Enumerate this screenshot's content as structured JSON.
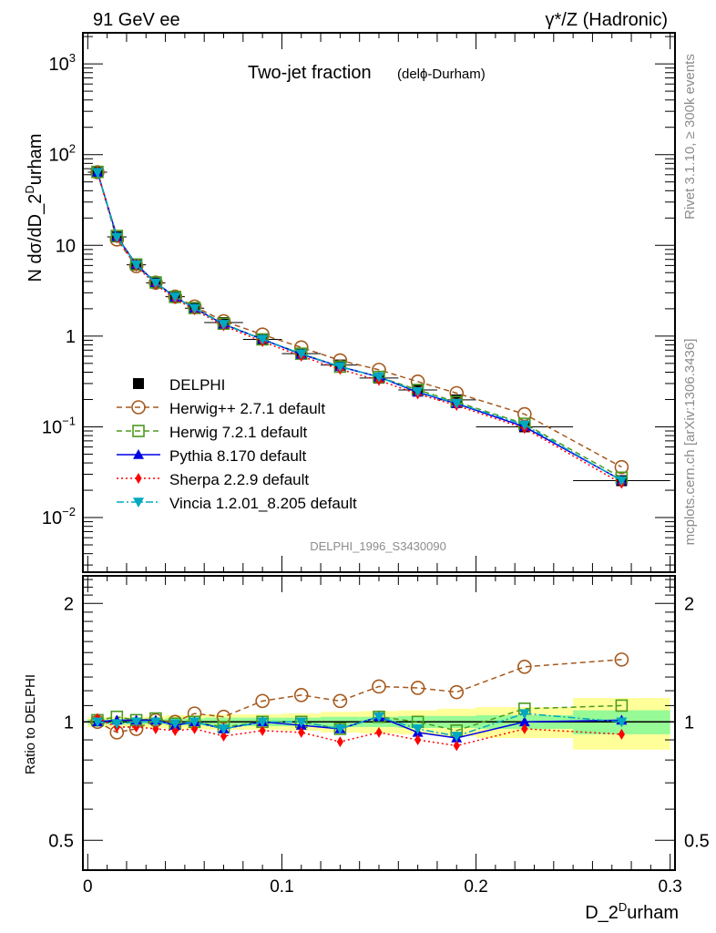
{
  "header": {
    "left": "91 GeV ee",
    "right": "γ*/Z (Hadronic)"
  },
  "side_labels": {
    "rivet": "Rivet 3.1.10, ≥ 300k events",
    "mcplots": "mcplots.cern.ch [arXiv:1306.3436]"
  },
  "chart_data": [
    {
      "type": "line",
      "panel": "main",
      "title": "Two-jet fraction",
      "subtitle": "(delϕ-Durham)",
      "watermark": "DELPHI_1996_S3430090",
      "xlabel": "D_2^Durham",
      "ylabel": "N dσ/dD_2^Durham",
      "yscale": "log",
      "xlim": [
        -0.0025,
        0.3025
      ],
      "ylim": [
        0.0025,
        2200
      ],
      "ytick_labels": [
        "10^-2",
        "10^-1",
        "1",
        "10",
        "10^2",
        "10^3"
      ],
      "yticks": [
        0.01,
        0.1,
        1,
        10,
        100,
        1000
      ],
      "x": [
        0.005,
        0.015,
        0.025,
        0.035,
        0.045,
        0.055,
        0.07,
        0.09,
        0.11,
        0.13,
        0.15,
        0.17,
        0.19,
        0.225,
        0.275
      ],
      "xerr": [
        0.005,
        0.005,
        0.005,
        0.005,
        0.005,
        0.005,
        0.01,
        0.01,
        0.01,
        0.01,
        0.01,
        0.01,
        0.01,
        0.025,
        0.025
      ],
      "legend_position": "bottom-left",
      "series": [
        {
          "name": "DELPHI",
          "marker": "square",
          "color": "#000000",
          "line": "none",
          "values": [
            64.0,
            12.4,
            6.1,
            3.85,
            2.72,
            2.03,
            1.41,
            0.92,
            0.64,
            0.48,
            0.345,
            0.255,
            0.198,
            0.1,
            0.0255
          ]
        },
        {
          "name": "Herwig++ 2.7.1 default",
          "marker": "open-circle",
          "color": "#a5591e",
          "line": "dashed",
          "values": [
            64.0,
            11.6,
            5.9,
            3.88,
            2.72,
            2.12,
            1.46,
            1.04,
            0.75,
            0.54,
            0.425,
            0.315,
            0.235,
            0.138,
            0.036
          ]
        },
        {
          "name": "Herwig 7.2.1 default",
          "marker": "open-square",
          "color": "#4b9a1f",
          "line": "dashed",
          "values": [
            64.5,
            12.7,
            6.15,
            3.9,
            2.7,
            2.04,
            1.37,
            0.92,
            0.64,
            0.46,
            0.355,
            0.255,
            0.188,
            0.108,
            0.0275
          ]
        },
        {
          "name": "Pythia 8.170 default",
          "marker": "triangle-up",
          "color": "#0000e6",
          "line": "solid",
          "values": [
            64.2,
            12.5,
            6.15,
            3.88,
            2.68,
            2.03,
            1.35,
            0.92,
            0.63,
            0.46,
            0.355,
            0.24,
            0.18,
            0.1,
            0.0257
          ]
        },
        {
          "name": "Sherpa 2.2.9 default",
          "marker": "diamond",
          "color": "#ff0000",
          "line": "dotted",
          "values": [
            65.5,
            12.0,
            5.9,
            3.7,
            2.58,
            1.95,
            1.3,
            0.87,
            0.6,
            0.43,
            0.325,
            0.23,
            0.172,
            0.096,
            0.0238
          ]
        },
        {
          "name": "Vincia 1.2.01_8.205 default",
          "marker": "triangle-down",
          "color": "#00a8c0",
          "line": "dashdot",
          "values": [
            63.8,
            12.3,
            6.1,
            3.85,
            2.7,
            2.02,
            1.35,
            0.92,
            0.64,
            0.46,
            0.355,
            0.245,
            0.182,
            0.105,
            0.0255
          ]
        }
      ]
    },
    {
      "type": "line",
      "panel": "ratio",
      "ylabel": "Ratio to DELPHI",
      "xlabel": "D_2^Durham",
      "yscale": "log",
      "xlim": [
        -0.0025,
        0.3025
      ],
      "ylim": [
        0.42,
        2.35
      ],
      "yticks": [
        0.5,
        1,
        2
      ],
      "ytick_labels": [
        "0.5",
        "1",
        "2"
      ],
      "xticks": [
        0,
        0.1,
        0.2,
        0.3
      ],
      "xtick_labels": [
        "0",
        "0.1",
        "0.2",
        "0.3"
      ],
      "bands": {
        "inner_color": "#96fa96",
        "outer_color": "#ffff99",
        "inner_half_width": [
          0.015,
          0.015,
          0.015,
          0.015,
          0.02,
          0.02,
          0.025,
          0.025,
          0.025,
          0.03,
          0.03,
          0.035,
          0.035,
          0.04,
          0.07
        ],
        "outer_half_width": [
          0.03,
          0.03,
          0.03,
          0.035,
          0.04,
          0.04,
          0.045,
          0.045,
          0.05,
          0.06,
          0.065,
          0.07,
          0.08,
          0.09,
          0.15
        ]
      },
      "series": [
        {
          "name": "Herwig++ 2.7.1 default",
          "color": "#a5591e",
          "marker": "open-circle",
          "line": "dashed",
          "values": [
            1.0,
            0.94,
            0.96,
            1.01,
            1.0,
            1.05,
            1.03,
            1.13,
            1.17,
            1.13,
            1.23,
            1.22,
            1.19,
            1.38,
            1.44
          ]
        },
        {
          "name": "Herwig 7.2.1 default",
          "color": "#4b9a1f",
          "marker": "open-square",
          "line": "dashed",
          "values": [
            1.01,
            1.03,
            1.01,
            1.02,
            0.99,
            1.0,
            0.97,
            1.0,
            1.0,
            0.96,
            1.03,
            1.0,
            0.95,
            1.08,
            1.1
          ]
        },
        {
          "name": "Pythia 8.170 default",
          "color": "#0000e6",
          "marker": "triangle-up",
          "line": "solid",
          "values": [
            1.0,
            1.01,
            1.01,
            1.01,
            0.98,
            1.0,
            0.96,
            1.0,
            0.98,
            0.96,
            1.03,
            0.94,
            0.91,
            1.0,
            1.01
          ]
        },
        {
          "name": "Sherpa 2.2.9 default",
          "color": "#ff0000",
          "marker": "diamond",
          "line": "dotted",
          "values": [
            1.02,
            0.97,
            0.97,
            0.96,
            0.95,
            0.96,
            0.92,
            0.95,
            0.94,
            0.89,
            0.94,
            0.9,
            0.87,
            0.96,
            0.93
          ]
        },
        {
          "name": "Vincia 1.2.01_8.205 default",
          "color": "#00a8c0",
          "marker": "triangle-down",
          "line": "dashdot",
          "values": [
            1.0,
            0.99,
            1.0,
            1.0,
            0.99,
            1.0,
            0.96,
            1.0,
            1.0,
            0.96,
            1.03,
            0.96,
            0.92,
            1.05,
            1.0
          ]
        }
      ]
    }
  ]
}
